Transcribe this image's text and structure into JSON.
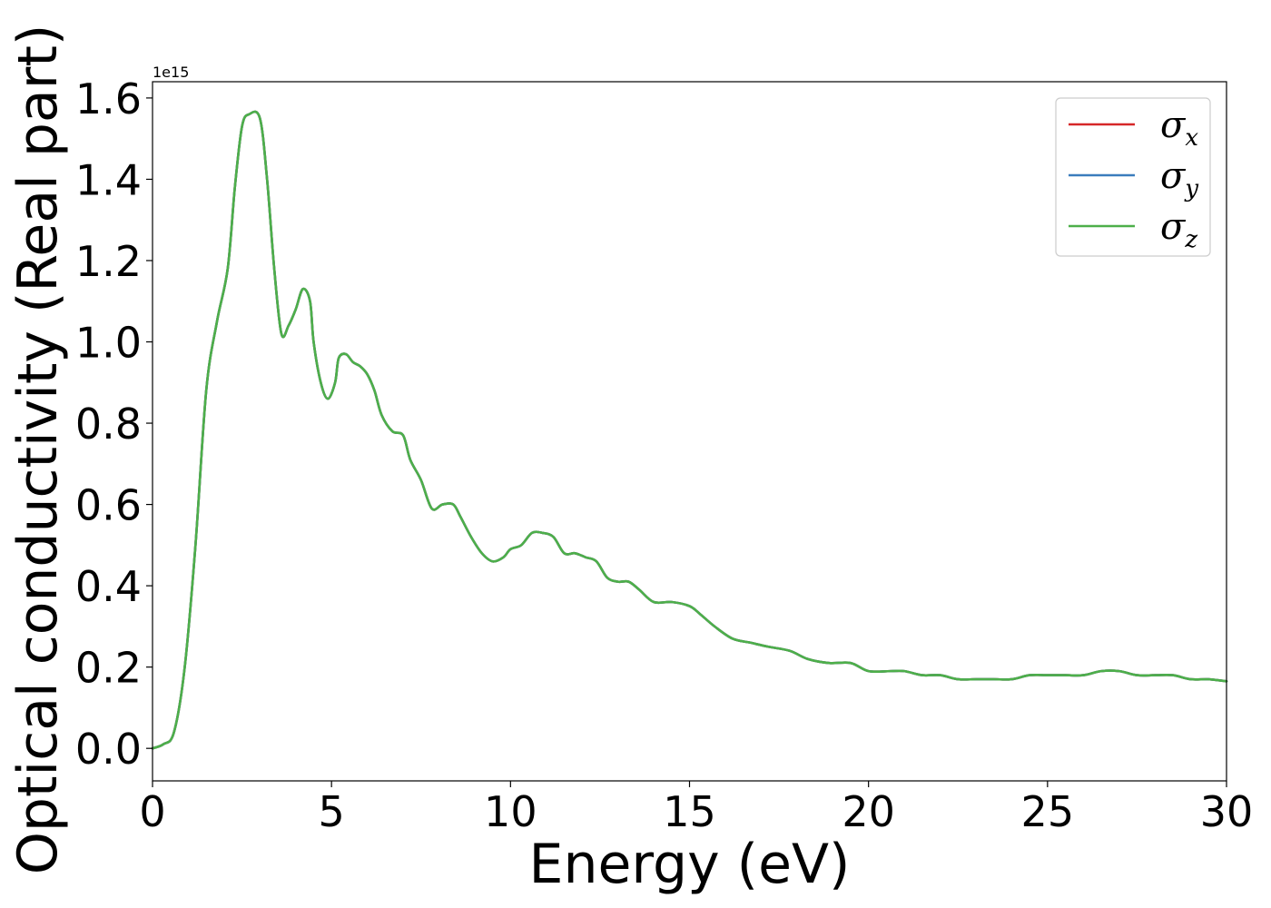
{
  "chart_data": {
    "type": "line",
    "title": "",
    "xlabel": "Energy (eV)",
    "ylabel": "Optical conductivity (Real part)",
    "y_offset_label": "1e15",
    "xlim": [
      0,
      30
    ],
    "ylim": [
      -0.08,
      1.64
    ],
    "xticks": [
      0,
      5,
      10,
      15,
      20,
      25,
      30
    ],
    "xtick_labels": [
      "0",
      "5",
      "10",
      "15",
      "20",
      "25",
      "30"
    ],
    "yticks": [
      0.0,
      0.2,
      0.4,
      0.6,
      0.8,
      1.0,
      1.2,
      1.4,
      1.6
    ],
    "ytick_labels": [
      "0.0",
      "0.2",
      "0.4",
      "0.6",
      "0.8",
      "1.0",
      "1.2",
      "1.4",
      "1.6"
    ],
    "grid": false,
    "legend_position": "top-right",
    "x": [
      0,
      0.3,
      0.6,
      0.9,
      1.2,
      1.5,
      1.8,
      2.1,
      2.3,
      2.5,
      2.7,
      3.0,
      3.2,
      3.4,
      3.6,
      3.8,
      4.0,
      4.2,
      4.4,
      4.5,
      4.7,
      4.9,
      5.1,
      5.2,
      5.4,
      5.6,
      5.8,
      6.0,
      6.2,
      6.4,
      6.7,
      7.0,
      7.2,
      7.5,
      7.8,
      8.1,
      8.4,
      8.6,
      8.9,
      9.2,
      9.5,
      9.8,
      10.0,
      10.3,
      10.6,
      10.9,
      11.2,
      11.5,
      11.8,
      12.1,
      12.4,
      12.7,
      13.0,
      13.3,
      13.6,
      14.0,
      14.5,
      15.0,
      15.3,
      15.7,
      16.2,
      16.7,
      17.2,
      17.8,
      18.3,
      18.9,
      19.5,
      20.0,
      20.6,
      21.0,
      21.5,
      22.0,
      22.5,
      23.0,
      23.5,
      24.0,
      24.5,
      25.0,
      25.5,
      26.0,
      26.5,
      27.0,
      27.5,
      28.0,
      28.5,
      29.0,
      29.5,
      30.0
    ],
    "series": [
      {
        "name": "σx",
        "legend_main": "σ",
        "legend_sub": "x",
        "color": "#d62728",
        "values": [
          0.0,
          0.01,
          0.04,
          0.2,
          0.5,
          0.88,
          1.05,
          1.18,
          1.38,
          1.53,
          1.56,
          1.55,
          1.4,
          1.18,
          1.02,
          1.04,
          1.08,
          1.13,
          1.1,
          1.0,
          0.9,
          0.86,
          0.9,
          0.96,
          0.97,
          0.95,
          0.94,
          0.92,
          0.88,
          0.82,
          0.78,
          0.77,
          0.71,
          0.66,
          0.59,
          0.6,
          0.6,
          0.57,
          0.52,
          0.48,
          0.46,
          0.47,
          0.49,
          0.5,
          0.53,
          0.53,
          0.52,
          0.48,
          0.48,
          0.47,
          0.46,
          0.42,
          0.41,
          0.41,
          0.39,
          0.36,
          0.36,
          0.35,
          0.33,
          0.3,
          0.27,
          0.26,
          0.25,
          0.24,
          0.22,
          0.21,
          0.21,
          0.19,
          0.19,
          0.19,
          0.18,
          0.18,
          0.17,
          0.17,
          0.17,
          0.17,
          0.18,
          0.18,
          0.18,
          0.18,
          0.19,
          0.19,
          0.18,
          0.18,
          0.18,
          0.17,
          0.17,
          0.165
        ]
      },
      {
        "name": "σy",
        "legend_main": "σ",
        "legend_sub": "y",
        "color": "#3b7dbd",
        "values": [
          0.0,
          0.01,
          0.04,
          0.2,
          0.5,
          0.88,
          1.05,
          1.18,
          1.38,
          1.53,
          1.56,
          1.55,
          1.4,
          1.18,
          1.02,
          1.04,
          1.08,
          1.13,
          1.1,
          1.0,
          0.9,
          0.86,
          0.9,
          0.96,
          0.97,
          0.95,
          0.94,
          0.92,
          0.88,
          0.82,
          0.78,
          0.77,
          0.71,
          0.66,
          0.59,
          0.6,
          0.6,
          0.57,
          0.52,
          0.48,
          0.46,
          0.47,
          0.49,
          0.5,
          0.53,
          0.53,
          0.52,
          0.48,
          0.48,
          0.47,
          0.46,
          0.42,
          0.41,
          0.41,
          0.39,
          0.36,
          0.36,
          0.35,
          0.33,
          0.3,
          0.27,
          0.26,
          0.25,
          0.24,
          0.22,
          0.21,
          0.21,
          0.19,
          0.19,
          0.19,
          0.18,
          0.18,
          0.17,
          0.17,
          0.17,
          0.17,
          0.18,
          0.18,
          0.18,
          0.18,
          0.19,
          0.19,
          0.18,
          0.18,
          0.18,
          0.17,
          0.17,
          0.165
        ]
      },
      {
        "name": "σz",
        "legend_main": "σ",
        "legend_sub": "z",
        "color": "#4daf4a",
        "values": [
          0.0,
          0.01,
          0.04,
          0.2,
          0.5,
          0.88,
          1.05,
          1.18,
          1.38,
          1.53,
          1.56,
          1.55,
          1.4,
          1.18,
          1.02,
          1.04,
          1.08,
          1.13,
          1.1,
          1.0,
          0.9,
          0.86,
          0.9,
          0.96,
          0.97,
          0.95,
          0.94,
          0.92,
          0.88,
          0.82,
          0.78,
          0.77,
          0.71,
          0.66,
          0.59,
          0.6,
          0.6,
          0.57,
          0.52,
          0.48,
          0.46,
          0.47,
          0.49,
          0.5,
          0.53,
          0.53,
          0.52,
          0.48,
          0.48,
          0.47,
          0.46,
          0.42,
          0.41,
          0.41,
          0.39,
          0.36,
          0.36,
          0.35,
          0.33,
          0.3,
          0.27,
          0.26,
          0.25,
          0.24,
          0.22,
          0.21,
          0.21,
          0.19,
          0.19,
          0.19,
          0.18,
          0.18,
          0.17,
          0.17,
          0.17,
          0.17,
          0.18,
          0.18,
          0.18,
          0.18,
          0.19,
          0.19,
          0.18,
          0.18,
          0.18,
          0.17,
          0.17,
          0.165
        ]
      }
    ]
  }
}
